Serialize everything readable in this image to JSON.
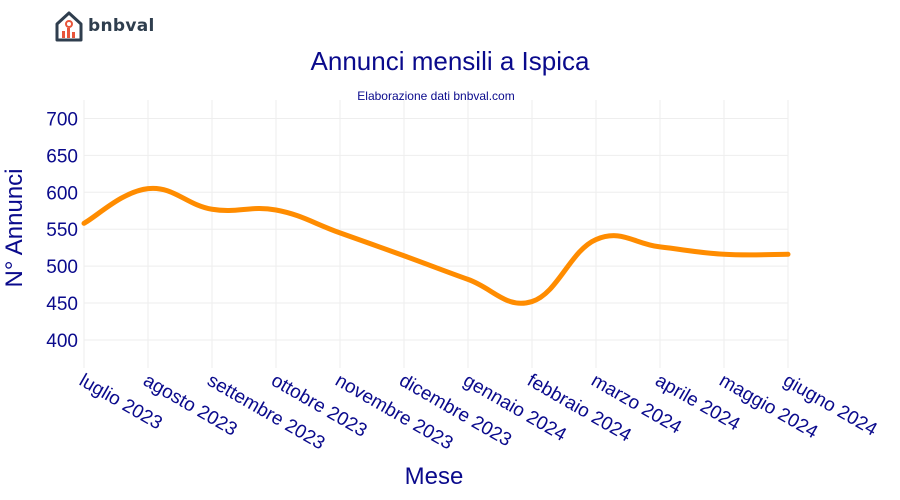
{
  "brand": {
    "name": "bnbval"
  },
  "chart_data": {
    "type": "line",
    "title": "Annunci mensili a Ispica",
    "subtitle": "Elaborazione dati bnbval.com",
    "xlabel": "Mese",
    "ylabel": "N° Annunci",
    "categories": [
      "luglio 2023",
      "agosto 2023",
      "settembre 2023",
      "ottobre 2023",
      "novembre 2023",
      "dicembre 2023",
      "gennaio 2024",
      "febbraio 2024",
      "marzo 2024",
      "aprile 2024",
      "maggio 2024",
      "giugno 2024"
    ],
    "series": [
      {
        "values": [
          558,
          605,
          577,
          576,
          545,
          514,
          482,
          452,
          536,
          526,
          516,
          516
        ]
      }
    ],
    "yticks": [
      400,
      450,
      500,
      550,
      600,
      650,
      700
    ],
    "ylim": [
      362,
      725
    ],
    "grid": true,
    "line_color": "#ff8c00"
  }
}
